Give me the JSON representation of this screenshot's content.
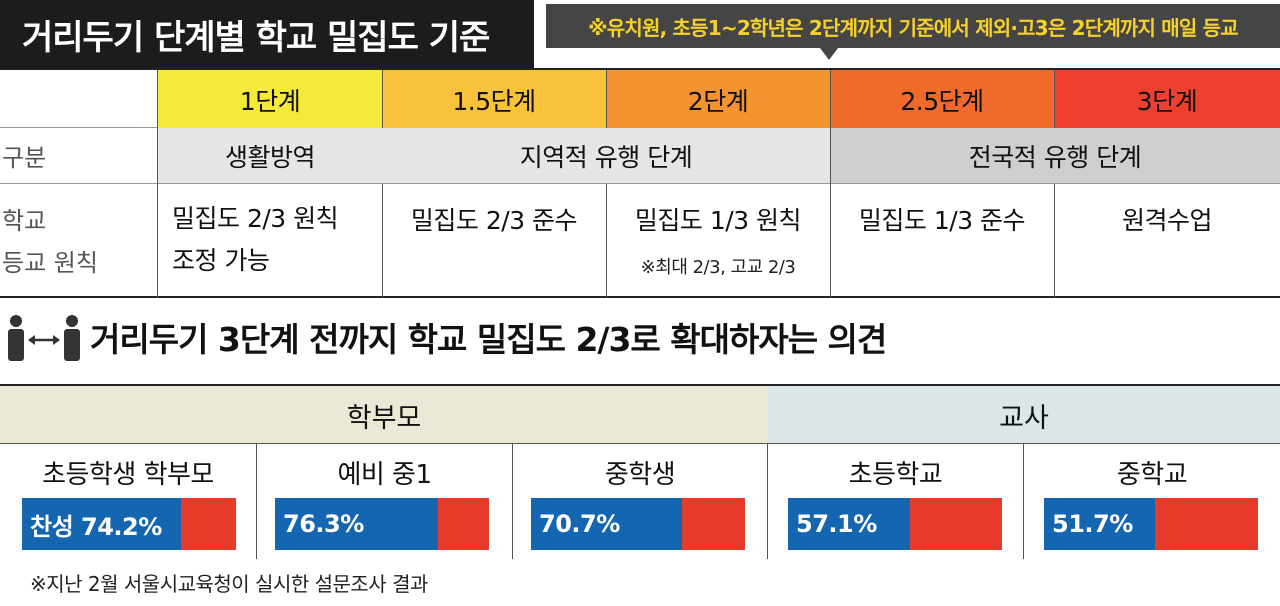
{
  "header": {
    "title": "거리두기 단계별 학교 밀집도 기준",
    "note": "※유치원, 초등1~2학년은 2단계까지 기준에서 제외·고3은 2단계까지 매일 등교"
  },
  "table": {
    "stages": [
      {
        "label": "1단계",
        "color": "#f5e93a"
      },
      {
        "label": "1.5단계",
        "color": "#f8c33a"
      },
      {
        "label": "2단계",
        "color": "#f5932f"
      },
      {
        "label": "2.5단계",
        "color": "#f06a2c"
      },
      {
        "label": "3단계",
        "color": "#ef3f2f"
      }
    ],
    "row_labels": {
      "category": "구분",
      "rule_line1": "학교",
      "rule_line2": "등교 원칙"
    },
    "categories": {
      "c1": "생활방역",
      "c2": "지역적 유행 단계",
      "c3": "전국적 유행 단계"
    },
    "rules": {
      "r1_line1": "밀집도 2/3 원칙",
      "r1_line2": "조정 가능",
      "r2": "밀집도 2/3 준수",
      "r3": "밀집도 1/3 원칙",
      "r3_note": "※최대 2/3, 고교 2/3",
      "r4": "밀집도 1/3 준수",
      "r5": "원격수업"
    }
  },
  "survey": {
    "title": "거리두기 3단계 전까지 학교 밀집도 2/3로 확대하자는 의견",
    "icon": "people-distance-icon",
    "groups": [
      {
        "label": "학부모",
        "color": "#ece8d6"
      },
      {
        "label": "교사",
        "color": "#dce6e8"
      }
    ],
    "footnote": "※지난 2월 서울시교육청이 실시한 설문조사 결과"
  },
  "chart_data": {
    "type": "bar",
    "title": "거리두기 3단계 전까지 학교 밀집도 2/3로 확대하자는 의견",
    "categories": [
      "초등학생 학부모",
      "예비 중1",
      "중학생",
      "초등학교",
      "중학교"
    ],
    "series": [
      {
        "name": "찬성",
        "values": [
          74.2,
          76.3,
          70.7,
          57.1,
          51.7
        ],
        "color": "#1566b0"
      }
    ],
    "value_labels": [
      "찬성 74.2%",
      "76.3%",
      "70.7%",
      "57.1%",
      "51.7%"
    ],
    "remainder_color": "#e63a2b",
    "ylim": [
      0,
      100
    ],
    "groups": [
      "학부모",
      "학부모",
      "학부모",
      "교사",
      "교사"
    ]
  }
}
